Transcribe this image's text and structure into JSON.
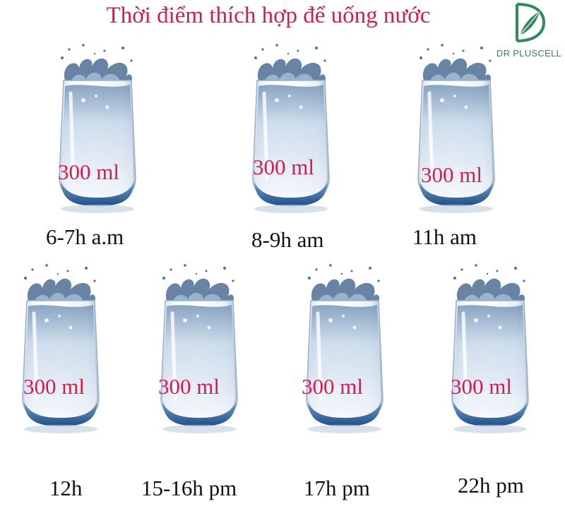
{
  "title": "Thời điểm thích hợp để uống nước",
  "logo": {
    "name": "DR PLUSCELL",
    "icon": "leaf-d-logo-icon",
    "color": "#2e8b57"
  },
  "colors": {
    "accent": "#d81b4a",
    "text": "#111111",
    "water": "#7fa8cf"
  },
  "glasses": [
    {
      "amount": "300 ml",
      "time": "6-7h a.m"
    },
    {
      "amount": "300 ml",
      "time": "8-9h am"
    },
    {
      "amount": "300 ml",
      "time": "11h am"
    },
    {
      "amount": "300 ml",
      "time": "12h"
    },
    {
      "amount": "300 ml",
      "time": "15-16h pm"
    },
    {
      "amount": "300 ml",
      "time": "17h pm"
    },
    {
      "amount": "300 ml",
      "time": "22h pm"
    }
  ]
}
